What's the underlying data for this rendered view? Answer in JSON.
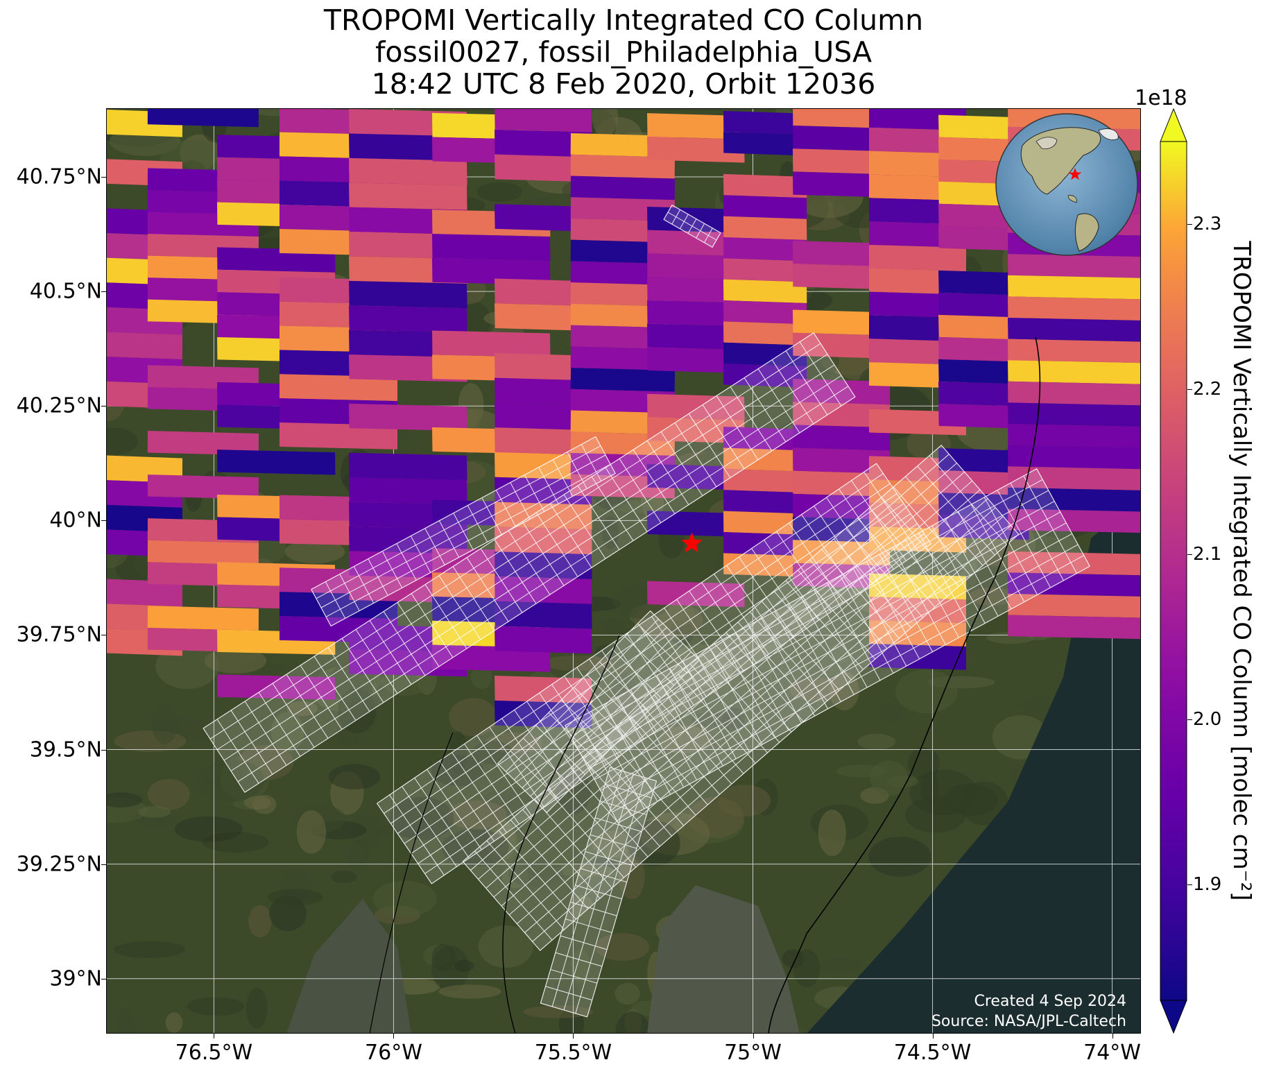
{
  "title": {
    "line1": "TROPOMI Vertically Integrated CO Column",
    "line2": "fossil0027, fossil_Philadelphia_USA",
    "line3": "18:42 UTC 8 Feb 2020, Orbit 12036"
  },
  "map": {
    "lon_range": [
      -76.8,
      -73.92
    ],
    "lat_range": [
      38.88,
      40.9
    ],
    "target_site": {
      "lon": -75.17,
      "lat": 39.95,
      "marker": "red-star"
    },
    "basemap": "satellite imagery",
    "colors": {
      "grid": "#d9d9d9",
      "coastline": "#000000",
      "target_marker": "#ff0000",
      "footprint_outline": "#ffffff"
    }
  },
  "axes": {
    "y_ticks": [
      {
        "label": "40.75°N",
        "lat": 40.75
      },
      {
        "label": "40.5°N",
        "lat": 40.5
      },
      {
        "label": "40.25°N",
        "lat": 40.25
      },
      {
        "label": "40°N",
        "lat": 40.0
      },
      {
        "label": "39.75°N",
        "lat": 39.75
      },
      {
        "label": "39.5°N",
        "lat": 39.5
      },
      {
        "label": "39.25°N",
        "lat": 39.25
      },
      {
        "label": "39°N",
        "lat": 39.0
      }
    ],
    "x_ticks": [
      {
        "label": "76.5°W",
        "lon": -76.5
      },
      {
        "label": "76°W",
        "lon": -76.0
      },
      {
        "label": "75.5°W",
        "lon": -75.5
      },
      {
        "label": "75°W",
        "lon": -75.0
      },
      {
        "label": "74.5°W",
        "lon": -74.5
      },
      {
        "label": "74°W",
        "lon": -74.0
      }
    ]
  },
  "colorbar": {
    "label": "TROPOMI Vertically Integrated CO Column [molec cm⁻²]",
    "exponent": "1e18",
    "range": [
      1.83,
      2.35
    ],
    "colormap": "plasma",
    "extend": "both",
    "ticks": [
      {
        "label": "1.9",
        "value": 1.9
      },
      {
        "label": "2.0",
        "value": 2.0
      },
      {
        "label": "2.1",
        "value": 2.1
      },
      {
        "label": "2.2",
        "value": 2.2
      },
      {
        "label": "2.3",
        "value": 2.3
      }
    ]
  },
  "credits": {
    "created": "Created 4 Sep 2024",
    "source": "Source: NASA/JPL-Caltech"
  },
  "inset": {
    "description": "globe locator",
    "marker": "red-star"
  }
}
